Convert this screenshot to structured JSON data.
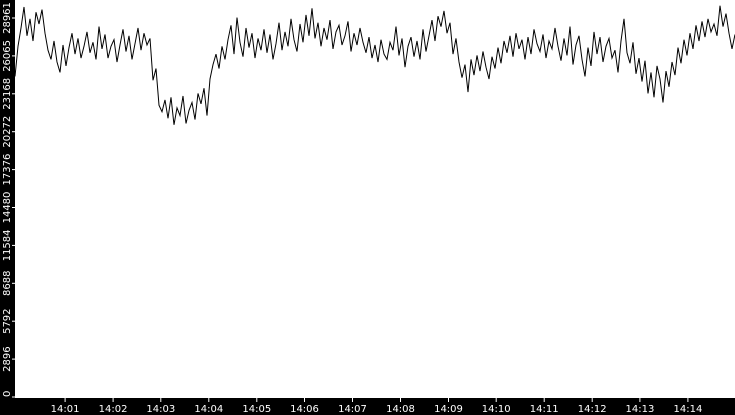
{
  "chart_data": {
    "type": "line",
    "color": "#000000",
    "values": [
      24500,
      26800,
      28200,
      29800,
      27600,
      28900,
      27200,
      29400,
      28500,
      29600,
      27800,
      26500,
      25800,
      27200,
      25600,
      24800,
      26900,
      25300,
      26700,
      27800,
      26200,
      27400,
      25900,
      26800,
      27900,
      26300,
      27100,
      25800,
      28300,
      26600,
      27700,
      25900,
      26800,
      27300,
      25600,
      26900,
      28100,
      26400,
      27600,
      25800,
      27000,
      28200,
      26500,
      27800,
      26900,
      27400,
      24200,
      25100,
      22300,
      21800,
      22700,
      21300,
      22900,
      20800,
      22100,
      21500,
      23000,
      20900,
      21900,
      22500,
      21200,
      23200,
      22400,
      23600,
      21500,
      24300,
      25400,
      26200,
      25100,
      26800,
      25800,
      27300,
      28400,
      26200,
      29000,
      27100,
      26000,
      28200,
      26700,
      27800,
      25900,
      27400,
      26500,
      28100,
      26300,
      27700,
      25800,
      27000,
      28600,
      26500,
      27900,
      26800,
      28900,
      27300,
      26400,
      28500,
      27100,
      29200,
      27600,
      29700,
      27400,
      28600,
      26800,
      28200,
      27300,
      28800,
      26600,
      27900,
      28400,
      26900,
      27600,
      28700,
      26400,
      27800,
      26900,
      28200,
      27100,
      26300,
      27500,
      25900,
      26900,
      25600,
      27300,
      26200,
      25800,
      27100,
      26500,
      28300,
      26100,
      27400,
      25200,
      26800,
      27500,
      26000,
      27200,
      25800,
      28100,
      26400,
      27600,
      28800,
      27200,
      29100,
      28300,
      29500,
      27800,
      28600,
      26200,
      27400,
      25600,
      24400,
      25400,
      23300,
      25800,
      24600,
      26100,
      24900,
      26400,
      25200,
      24300,
      26000,
      25100,
      26700,
      25500,
      27200,
      26300,
      27600,
      26000,
      27800,
      26600,
      27300,
      25800,
      27500,
      26200,
      28100,
      27000,
      26400,
      27700,
      25900,
      27200,
      26600,
      28200,
      26800,
      25700,
      27400,
      26100,
      28300,
      25400,
      26900,
      27600,
      25800,
      24500,
      26700,
      25300,
      27900,
      26200,
      27500,
      25600,
      26800,
      27400,
      25900,
      26500,
      24800,
      27200,
      28900,
      26300,
      25500,
      27100,
      24700,
      25900,
      24100,
      25700,
      23200,
      24800,
      22900,
      25300,
      24300,
      22500,
      24900,
      23700,
      25600,
      24600,
      26700,
      25500,
      27300,
      26100,
      27800,
      26600,
      28400,
      27200,
      28700,
      27500,
      28900,
      27900,
      28500,
      27600,
      29900,
      28300,
      29300,
      27800,
      26600,
      27700
    ],
    "xlim": [
      0,
      240
    ],
    "xticks": [
      {
        "value": 16.7,
        "label": "14:01"
      },
      {
        "value": 32.7,
        "label": "14:02"
      },
      {
        "value": 48.6,
        "label": "14:03"
      },
      {
        "value": 64.6,
        "label": "14:04"
      },
      {
        "value": 80.6,
        "label": "14:05"
      },
      {
        "value": 96.5,
        "label": "14:06"
      },
      {
        "value": 112.5,
        "label": "14:07"
      },
      {
        "value": 128.5,
        "label": "14:08"
      },
      {
        "value": 144.5,
        "label": "14:09"
      },
      {
        "value": 160.4,
        "label": "14:10"
      },
      {
        "value": 176.4,
        "label": "14:11"
      },
      {
        "value": 192.4,
        "label": "14:12"
      },
      {
        "value": 208.3,
        "label": "14:13"
      },
      {
        "value": 224.3,
        "label": "14:14"
      }
    ],
    "ylim": [
      0,
      30336
    ],
    "yticks": [
      0,
      2896,
      5792,
      8688,
      11584,
      14480,
      17376,
      20272,
      23168,
      26065,
      28961
    ]
  }
}
